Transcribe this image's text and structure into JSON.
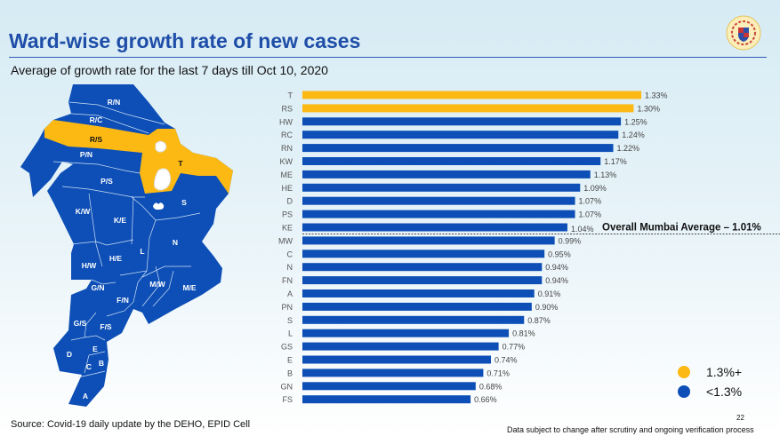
{
  "header": {
    "title": "Ward-wise growth rate of new cases",
    "subtitle": "Average of growth rate for the last 7 days till Oct 10, 2020",
    "logo": "mcgm-emblem"
  },
  "map": {
    "highlight_color": "#fdb913",
    "base_color": "#0d4fb6",
    "labels": [
      "R/N",
      "R/C",
      "R/S",
      "P/N",
      "T",
      "P/S",
      "S",
      "K/W",
      "K/E",
      "N",
      "L",
      "H/W",
      "H/E",
      "G/N",
      "M/W",
      "M/E",
      "F/N",
      "G/S",
      "F/S",
      "E",
      "D",
      "C",
      "B",
      "A"
    ],
    "highlighted": [
      "R/S",
      "T"
    ]
  },
  "chart_data": {
    "type": "bar",
    "orientation": "horizontal",
    "categories": [
      "T",
      "RS",
      "HW",
      "RC",
      "RN",
      "KW",
      "ME",
      "HE",
      "D",
      "PS",
      "KE",
      "MW",
      "C",
      "N",
      "FN",
      "A",
      "PN",
      "S",
      "L",
      "GS",
      "E",
      "B",
      "GN",
      "FS"
    ],
    "values": [
      1.33,
      1.3,
      1.25,
      1.24,
      1.22,
      1.17,
      1.13,
      1.09,
      1.07,
      1.07,
      1.04,
      0.99,
      0.95,
      0.94,
      0.94,
      0.91,
      0.9,
      0.87,
      0.81,
      0.77,
      0.74,
      0.71,
      0.68,
      0.66
    ],
    "labels": [
      "1.33%",
      "1.30%",
      "1.25%",
      "1.24%",
      "1.22%",
      "1.17%",
      "1.13%",
      "1.09%",
      "1.07%",
      "1.07%",
      "1.04%",
      "0.99%",
      "0.95%",
      "0.94%",
      "0.94%",
      "0.91%",
      "0.90%",
      "0.87%",
      "0.81%",
      "0.77%",
      "0.74%",
      "0.71%",
      "0.68%",
      "0.66%"
    ],
    "threshold": 1.3,
    "colors": {
      "high": "#fdb913",
      "low": "#0d4fb6"
    },
    "reference_line": {
      "value": 1.01,
      "label": "Overall Mumbai Average – 1.01%"
    },
    "legend": [
      {
        "label": "1.3%+",
        "color": "#fdb913"
      },
      {
        "label": "<1.3%",
        "color": "#0d4fb6"
      }
    ],
    "legend_position": "bottom-right",
    "grid": false
  },
  "footer": {
    "source": "Source: Covid-19 daily update by the DEHO, EPID Cell",
    "note": "Data subject to change after scrutiny and ongoing verification process",
    "page": "22"
  }
}
